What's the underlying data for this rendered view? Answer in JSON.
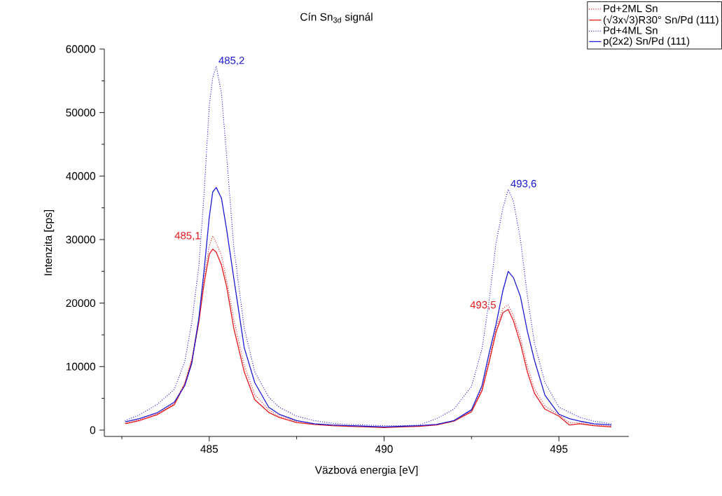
{
  "chart_data": {
    "type": "line",
    "title": "Cín Sn$_{3d}$ signál",
    "xlabel": "Väzbová energia [eV]",
    "ylabel": "Intenzita [cps]",
    "x": [
      482.6,
      483.0,
      483.5,
      484.0,
      484.3,
      484.5,
      484.7,
      484.85,
      485.0,
      485.1,
      485.2,
      485.35,
      485.5,
      485.7,
      486.0,
      486.3,
      486.7,
      487.0,
      487.5,
      488.0,
      488.5,
      489.0,
      489.5,
      490.0,
      490.5,
      491.0,
      491.5,
      492.0,
      492.5,
      492.8,
      493.0,
      493.2,
      493.4,
      493.55,
      493.7,
      493.9,
      494.1,
      494.3,
      494.6,
      495.0,
      495.3,
      495.6,
      496.0,
      496.5
    ],
    "series": [
      {
        "name": "Pd+2ML Sn",
        "color": "#e41a1c",
        "line_style": "dotted",
        "values": [
          1100,
          1600,
          2500,
          4200,
          7500,
          11200,
          17500,
          24000,
          29000,
          30600,
          29500,
          27500,
          23500,
          17500,
          10200,
          5600,
          3200,
          2200,
          1400,
          1000,
          800,
          700,
          600,
          500,
          600,
          700,
          900,
          1500,
          3000,
          6500,
          11000,
          16000,
          19200,
          19700,
          18000,
          14500,
          10000,
          6500,
          3800,
          2400,
          1200,
          1100,
          800,
          600
        ]
      },
      {
        "name": "(√3x√3)R30° Sn/Pd (111)",
        "color": "#e41a1c",
        "line_style": "solid",
        "values": [
          1000,
          1500,
          2400,
          4000,
          7200,
          10800,
          16900,
          23000,
          27700,
          28500,
          28000,
          26000,
          22500,
          16100,
          9200,
          4800,
          2800,
          2000,
          1200,
          900,
          700,
          600,
          500,
          400,
          500,
          600,
          800,
          1400,
          2900,
          6200,
          10600,
          15400,
          18500,
          19000,
          17200,
          13600,
          9100,
          5800,
          3300,
          2200,
          800,
          1000,
          700,
          500
        ]
      },
      {
        "name": "Pd+4ML Sn",
        "color": "#1a1ad6",
        "line_style": "dotted",
        "values": [
          1500,
          2400,
          4000,
          6400,
          10800,
          16900,
          25700,
          37000,
          51000,
          55500,
          57300,
          53000,
          43000,
          28900,
          16100,
          9200,
          5200,
          3600,
          2200,
          1500,
          1100,
          900,
          800,
          700,
          700,
          800,
          1800,
          3300,
          6900,
          12800,
          20200,
          29400,
          35000,
          37900,
          36000,
          30000,
          21000,
          13700,
          7500,
          3600,
          2800,
          2000,
          1400,
          1000
        ]
      },
      {
        "name": "p(2x2) Sn/Pd (111)",
        "color": "#1a1ad6",
        "line_style": "solid",
        "values": [
          1300,
          1800,
          2700,
          4400,
          7000,
          10500,
          17500,
          25000,
          33500,
          37500,
          38200,
          36500,
          31500,
          24000,
          13000,
          7500,
          3600,
          2500,
          1500,
          1000,
          800,
          700,
          600,
          500,
          600,
          700,
          900,
          1500,
          3200,
          7000,
          12000,
          16600,
          22000,
          25000,
          24000,
          21000,
          15500,
          11000,
          5500,
          2500,
          1800,
          1400,
          1000,
          800
        ]
      }
    ],
    "annotations": [
      {
        "text": "485,2",
        "x": 485.2,
        "y": 57300
      },
      {
        "text": "485,1",
        "x": 485.1,
        "y": 30600
      },
      {
        "text": "493,6",
        "x": 493.55,
        "y": 37900
      },
      {
        "text": "493,5",
        "x": 493.55,
        "y": 19700
      }
    ],
    "xlim": [
      482,
      497
    ],
    "ylim": [
      -1000,
      60000
    ],
    "xticks": [
      {
        "value": 482.5,
        "label": null
      },
      485,
      {
        "value": 487.5,
        "label": null
      },
      490,
      {
        "value": 492.5,
        "label": null
      },
      495
    ],
    "yticks": [
      0,
      {
        "value": 5000,
        "label": null
      },
      10000,
      {
        "value": 15000,
        "label": null
      },
      20000,
      {
        "value": 25000,
        "label": null
      },
      30000,
      {
        "value": 35000,
        "label": null
      },
      40000,
      {
        "value": 45000,
        "label": null
      },
      50000,
      {
        "value": 55000,
        "label": null
      },
      60000
    ],
    "legend": "top right",
    "grid": false,
    "marker": "none"
  }
}
